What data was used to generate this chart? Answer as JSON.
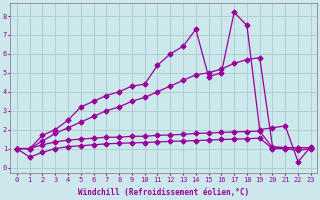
{
  "xlabel": "Windchill (Refroidissement éolien,°C)",
  "xlim": [
    -0.5,
    23.5
  ],
  "ylim": [
    -0.3,
    8.7
  ],
  "xticks": [
    0,
    1,
    2,
    3,
    4,
    5,
    6,
    7,
    8,
    9,
    10,
    11,
    12,
    13,
    14,
    15,
    16,
    17,
    18,
    19,
    20,
    21,
    22,
    23
  ],
  "yticks": [
    0,
    1,
    2,
    3,
    4,
    5,
    6,
    7,
    8
  ],
  "bg_color": "#cce8ec",
  "line_color": "#990099",
  "grid_color": "#aacccc",
  "line1_x": [
    0,
    1,
    2,
    3,
    4,
    5,
    6,
    7,
    8,
    9,
    10,
    11,
    12,
    13,
    14,
    15,
    16,
    17,
    18,
    19,
    20,
    21,
    22,
    23
  ],
  "line1_y": [
    1.0,
    1.0,
    1.7,
    2.0,
    2.5,
    3.2,
    3.5,
    3.8,
    4.0,
    4.3,
    4.4,
    5.4,
    6.0,
    6.4,
    7.3,
    4.8,
    5.0,
    8.2,
    7.5,
    2.0,
    2.1,
    2.2,
    0.3,
    1.1
  ],
  "line2_x": [
    0,
    1,
    2,
    3,
    4,
    5,
    6,
    7,
    8,
    9,
    10,
    11,
    12,
    13,
    14,
    15,
    16,
    17,
    18,
    19,
    20,
    21,
    22,
    23
  ],
  "line2_y": [
    1.0,
    1.0,
    1.4,
    1.8,
    2.1,
    2.4,
    2.7,
    3.0,
    3.2,
    3.5,
    3.7,
    4.0,
    4.3,
    4.6,
    4.9,
    5.0,
    5.2,
    5.5,
    5.7,
    5.8,
    1.1,
    1.05,
    1.05,
    1.05
  ],
  "line3_x": [
    0,
    1,
    2,
    3,
    4,
    5,
    6,
    7,
    8,
    9,
    10,
    11,
    12,
    13,
    14,
    15,
    16,
    17,
    18,
    19,
    20,
    21,
    22,
    23
  ],
  "line3_y": [
    1.0,
    1.0,
    1.2,
    1.35,
    1.45,
    1.5,
    1.55,
    1.6,
    1.6,
    1.65,
    1.65,
    1.7,
    1.72,
    1.75,
    1.8,
    1.82,
    1.85,
    1.88,
    1.9,
    1.92,
    1.05,
    1.05,
    1.05,
    1.05
  ],
  "line4_x": [
    0,
    1,
    2,
    3,
    4,
    5,
    6,
    7,
    8,
    9,
    10,
    11,
    12,
    13,
    14,
    15,
    16,
    17,
    18,
    19,
    20,
    21,
    22,
    23
  ],
  "line4_y": [
    1.0,
    0.55,
    0.8,
    1.0,
    1.1,
    1.15,
    1.2,
    1.25,
    1.28,
    1.3,
    1.32,
    1.35,
    1.38,
    1.4,
    1.42,
    1.45,
    1.48,
    1.5,
    1.52,
    1.55,
    1.0,
    1.0,
    0.9,
    1.0
  ]
}
